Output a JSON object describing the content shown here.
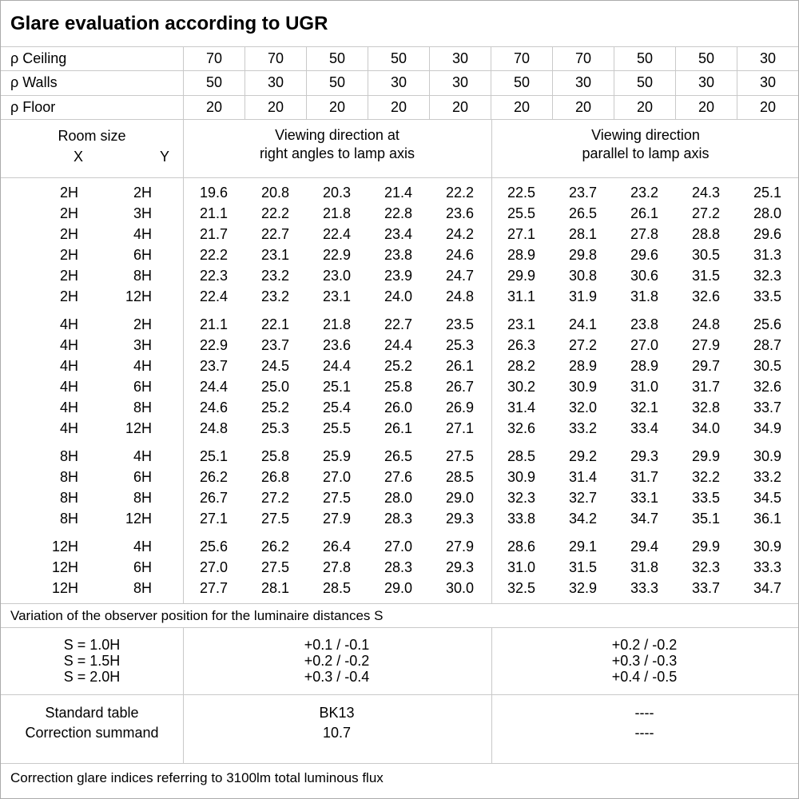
{
  "title": "Glare evaluation according to UGR",
  "reflectance": {
    "rows": [
      {
        "label": "ρ Ceiling",
        "values": [
          "70",
          "70",
          "50",
          "50",
          "30",
          "70",
          "70",
          "50",
          "50",
          "30"
        ]
      },
      {
        "label": "ρ Walls",
        "values": [
          "50",
          "30",
          "50",
          "30",
          "30",
          "50",
          "30",
          "50",
          "30",
          "30"
        ]
      },
      {
        "label": "ρ Floor",
        "values": [
          "20",
          "20",
          "20",
          "20",
          "20",
          "20",
          "20",
          "20",
          "20",
          "20"
        ]
      }
    ]
  },
  "header": {
    "room_size_label": "Room size",
    "x_label": "X",
    "y_label": "Y",
    "group_left_line1": "Viewing direction at",
    "group_left_line2": "right angles to lamp axis",
    "group_right_line1": "Viewing direction",
    "group_right_line2": "parallel to lamp axis"
  },
  "ugr_table": {
    "groups": [
      {
        "rows": [
          {
            "x": "2H",
            "y": "2H",
            "values": [
              "19.6",
              "20.8",
              "20.3",
              "21.4",
              "22.2",
              "22.5",
              "23.7",
              "23.2",
              "24.3",
              "25.1"
            ]
          },
          {
            "x": "2H",
            "y": "3H",
            "values": [
              "21.1",
              "22.2",
              "21.8",
              "22.8",
              "23.6",
              "25.5",
              "26.5",
              "26.1",
              "27.2",
              "28.0"
            ]
          },
          {
            "x": "2H",
            "y": "4H",
            "values": [
              "21.7",
              "22.7",
              "22.4",
              "23.4",
              "24.2",
              "27.1",
              "28.1",
              "27.8",
              "28.8",
              "29.6"
            ]
          },
          {
            "x": "2H",
            "y": "6H",
            "values": [
              "22.2",
              "23.1",
              "22.9",
              "23.8",
              "24.6",
              "28.9",
              "29.8",
              "29.6",
              "30.5",
              "31.3"
            ]
          },
          {
            "x": "2H",
            "y": "8H",
            "values": [
              "22.3",
              "23.2",
              "23.0",
              "23.9",
              "24.7",
              "29.9",
              "30.8",
              "30.6",
              "31.5",
              "32.3"
            ]
          },
          {
            "x": "2H",
            "y": "12H",
            "values": [
              "22.4",
              "23.2",
              "23.1",
              "24.0",
              "24.8",
              "31.1",
              "31.9",
              "31.8",
              "32.6",
              "33.5"
            ]
          }
        ]
      },
      {
        "rows": [
          {
            "x": "4H",
            "y": "2H",
            "values": [
              "21.1",
              "22.1",
              "21.8",
              "22.7",
              "23.5",
              "23.1",
              "24.1",
              "23.8",
              "24.8",
              "25.6"
            ]
          },
          {
            "x": "4H",
            "y": "3H",
            "values": [
              "22.9",
              "23.7",
              "23.6",
              "24.4",
              "25.3",
              "26.3",
              "27.2",
              "27.0",
              "27.9",
              "28.7"
            ]
          },
          {
            "x": "4H",
            "y": "4H",
            "values": [
              "23.7",
              "24.5",
              "24.4",
              "25.2",
              "26.1",
              "28.2",
              "28.9",
              "28.9",
              "29.7",
              "30.5"
            ]
          },
          {
            "x": "4H",
            "y": "6H",
            "values": [
              "24.4",
              "25.0",
              "25.1",
              "25.8",
              "26.7",
              "30.2",
              "30.9",
              "31.0",
              "31.7",
              "32.6"
            ]
          },
          {
            "x": "4H",
            "y": "8H",
            "values": [
              "24.6",
              "25.2",
              "25.4",
              "26.0",
              "26.9",
              "31.4",
              "32.0",
              "32.1",
              "32.8",
              "33.7"
            ]
          },
          {
            "x": "4H",
            "y": "12H",
            "values": [
              "24.8",
              "25.3",
              "25.5",
              "26.1",
              "27.1",
              "32.6",
              "33.2",
              "33.4",
              "34.0",
              "34.9"
            ]
          }
        ]
      },
      {
        "rows": [
          {
            "x": "8H",
            "y": "4H",
            "values": [
              "25.1",
              "25.8",
              "25.9",
              "26.5",
              "27.5",
              "28.5",
              "29.2",
              "29.3",
              "29.9",
              "30.9"
            ]
          },
          {
            "x": "8H",
            "y": "6H",
            "values": [
              "26.2",
              "26.8",
              "27.0",
              "27.6",
              "28.5",
              "30.9",
              "31.4",
              "31.7",
              "32.2",
              "33.2"
            ]
          },
          {
            "x": "8H",
            "y": "8H",
            "values": [
              "26.7",
              "27.2",
              "27.5",
              "28.0",
              "29.0",
              "32.3",
              "32.7",
              "33.1",
              "33.5",
              "34.5"
            ]
          },
          {
            "x": "8H",
            "y": "12H",
            "values": [
              "27.1",
              "27.5",
              "27.9",
              "28.3",
              "29.3",
              "33.8",
              "34.2",
              "34.7",
              "35.1",
              "36.1"
            ]
          }
        ]
      },
      {
        "rows": [
          {
            "x": "12H",
            "y": "4H",
            "values": [
              "25.6",
              "26.2",
              "26.4",
              "27.0",
              "27.9",
              "28.6",
              "29.1",
              "29.4",
              "29.9",
              "30.9"
            ]
          },
          {
            "x": "12H",
            "y": "6H",
            "values": [
              "27.0",
              "27.5",
              "27.8",
              "28.3",
              "29.3",
              "31.0",
              "31.5",
              "31.8",
              "32.3",
              "33.3"
            ]
          },
          {
            "x": "12H",
            "y": "8H",
            "values": [
              "27.7",
              "28.1",
              "28.5",
              "29.0",
              "30.0",
              "32.5",
              "32.9",
              "33.3",
              "33.7",
              "34.7"
            ]
          }
        ]
      }
    ]
  },
  "variation_note": "Variation of the observer position for the luminaire distances S",
  "spacing_section": {
    "rows": [
      {
        "label": "S = 1.0H",
        "right_angles": "+0.1 / -0.1",
        "parallel": "+0.2 / -0.2"
      },
      {
        "label": "S = 1.5H",
        "right_angles": "+0.2 / -0.2",
        "parallel": "+0.3 / -0.3"
      },
      {
        "label": "S = 2.0H",
        "right_angles": "+0.3 / -0.4",
        "parallel": "+0.4 / -0.5"
      }
    ]
  },
  "summary_section": {
    "rows": [
      {
        "label": "Standard table",
        "right_angles": "BK13",
        "parallel": "----"
      },
      {
        "label": "Correction summand",
        "right_angles": "10.7",
        "parallel": "----"
      }
    ]
  },
  "footer_note": "Correction glare indices referring to 3100lm total luminous flux",
  "colors": {
    "grid_line": "#c9c9c9",
    "outer_border": "#ababab",
    "text": "#000000",
    "background": "#ffffff"
  }
}
